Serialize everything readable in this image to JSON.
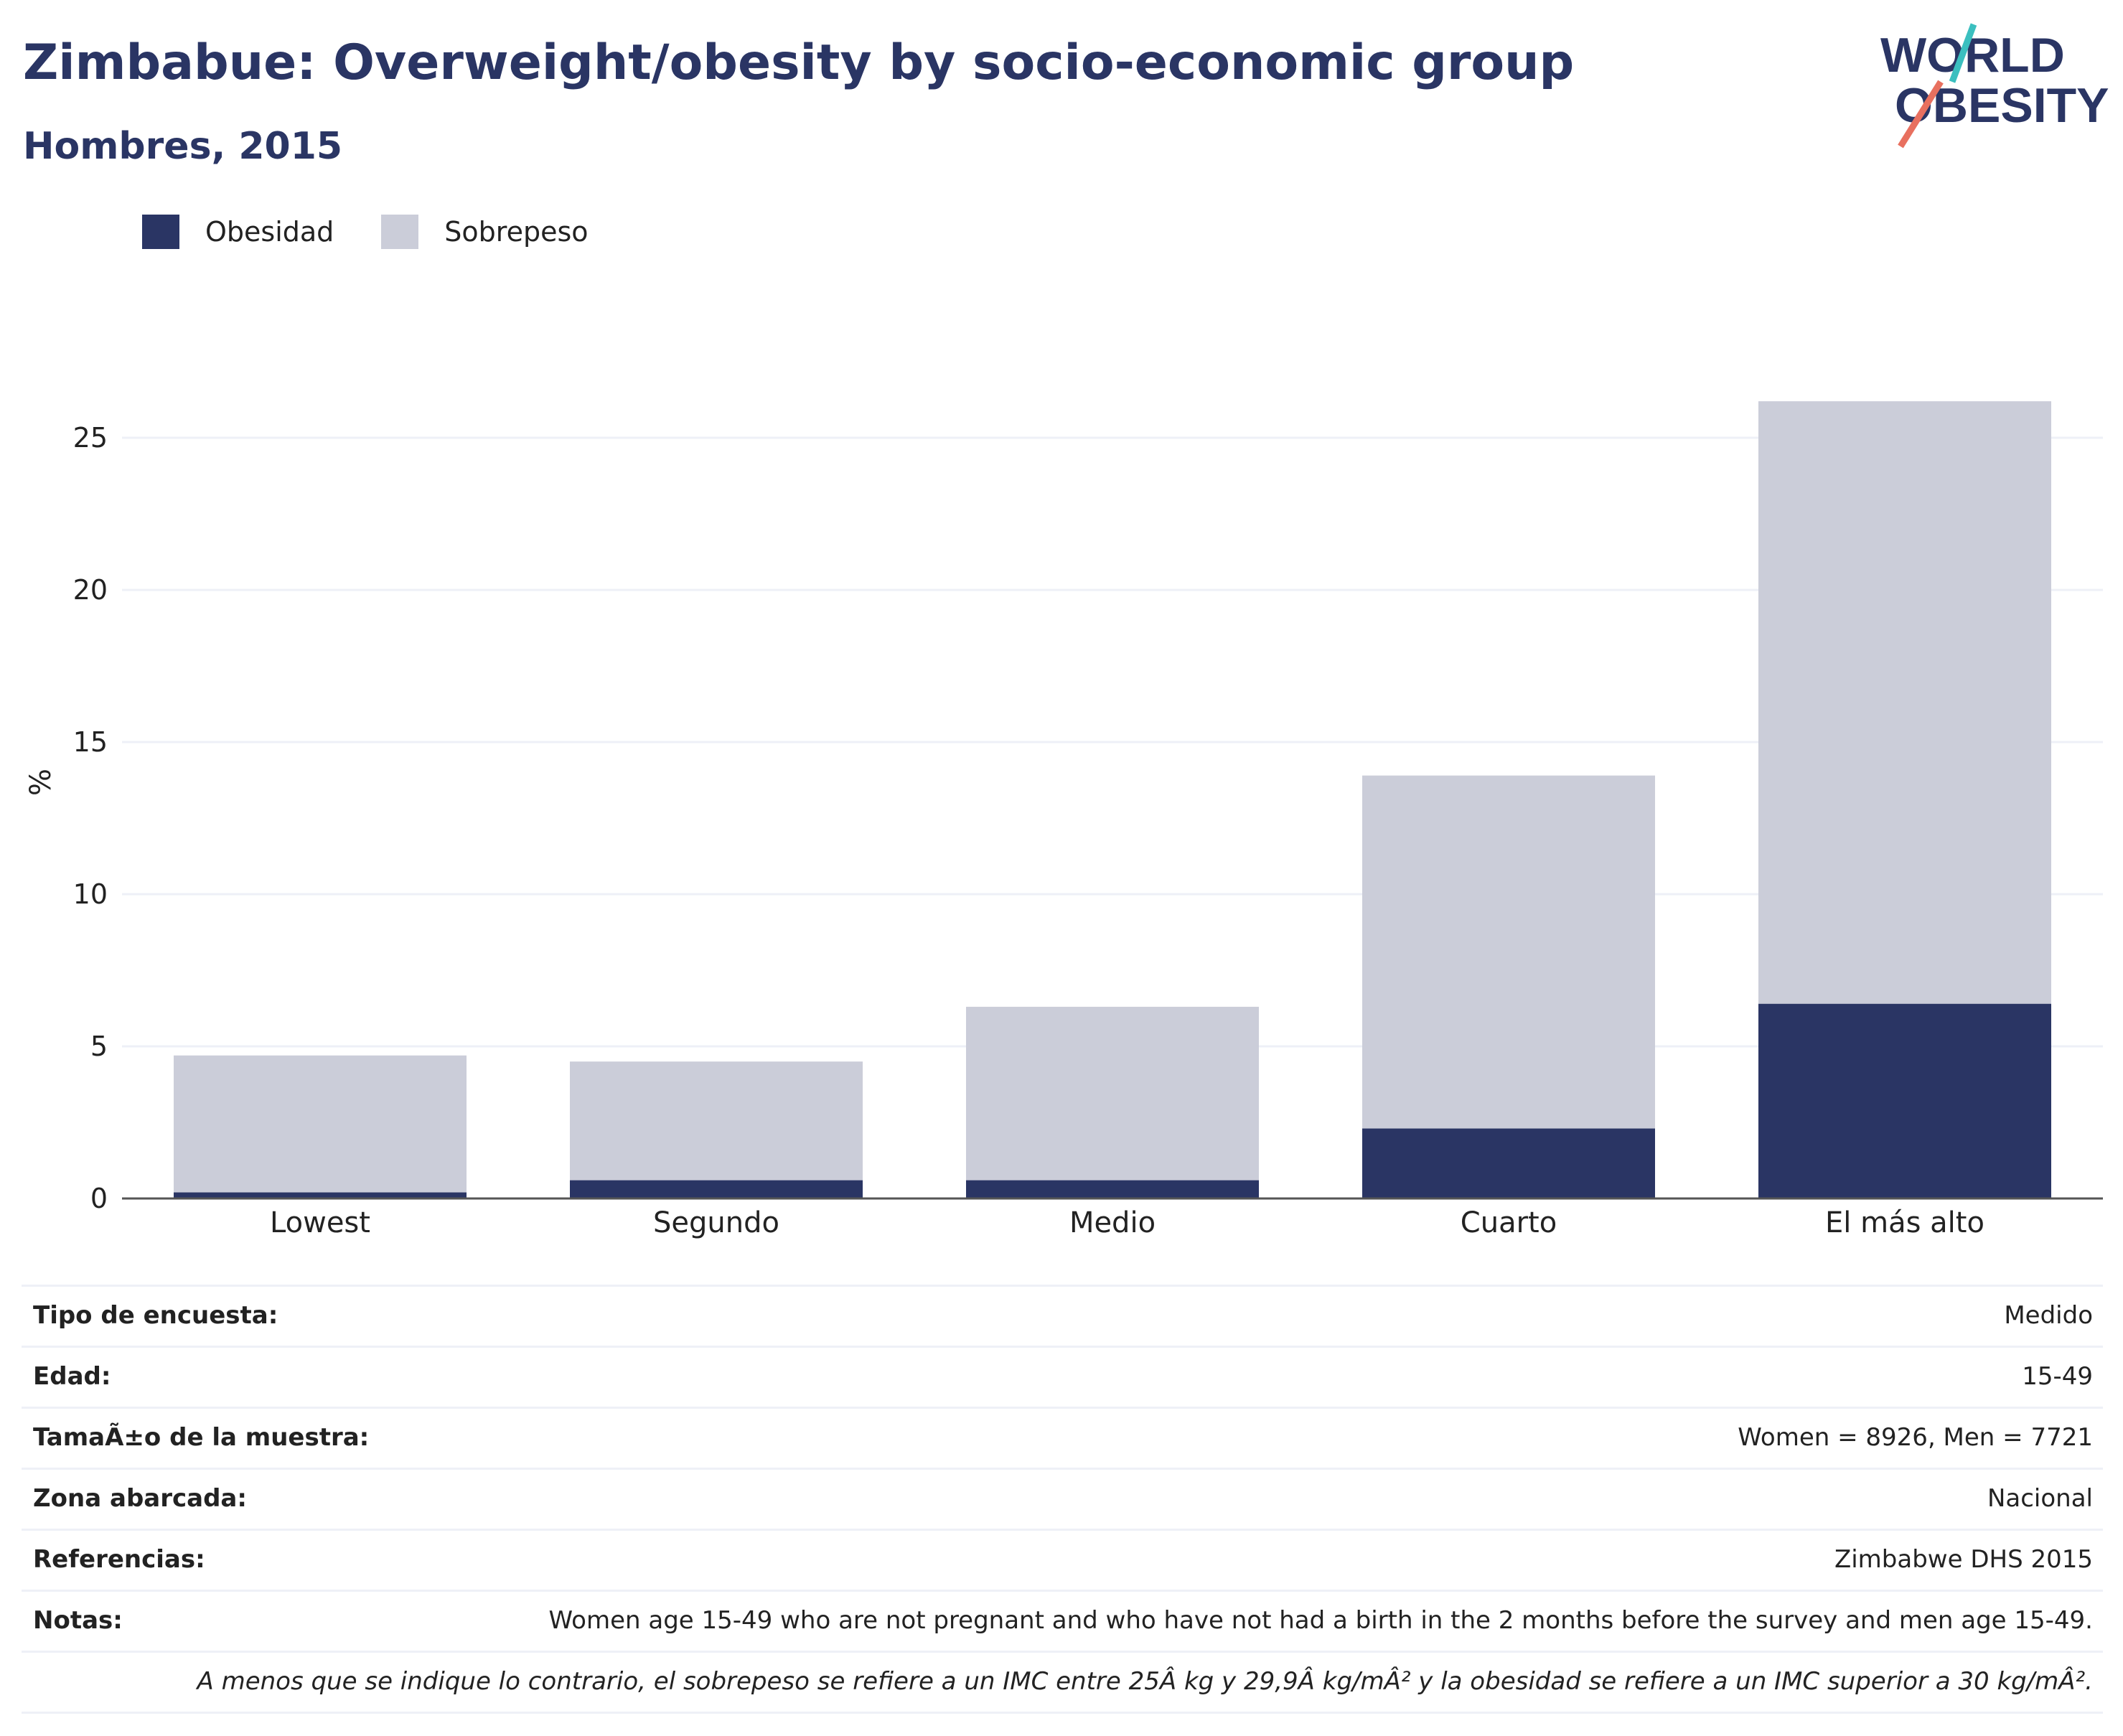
{
  "header": {
    "title": "Zimbabue: Overweight/obesity by socio-economic group",
    "subtitle": "Hombres, 2015"
  },
  "logo": {
    "line1": "WORLD",
    "line2": "OBESITY"
  },
  "colors": {
    "obesity": "#2a3564",
    "overweight": "#cbcdd9",
    "title": "#2a3564",
    "grid": "#eef0f7",
    "axis": "#555555",
    "logo_teal": "#3bbfbf",
    "logo_coral": "#e8705f"
  },
  "chart_data": {
    "type": "bar",
    "stacked": true,
    "categories": [
      "Lowest",
      "Segundo",
      "Medio",
      "Cuarto",
      "El más alto"
    ],
    "series": [
      {
        "name": "Obesidad",
        "values": [
          0.2,
          0.6,
          0.6,
          2.3,
          6.4
        ]
      },
      {
        "name": "Sobrepeso",
        "values": [
          4.5,
          3.9,
          5.7,
          11.6,
          19.8
        ]
      }
    ],
    "ylabel": "%",
    "ylim": [
      0,
      27
    ],
    "yticks": [
      0,
      5,
      10,
      15,
      20,
      25
    ],
    "grid": true,
    "legend": "top-left"
  },
  "info": [
    {
      "key": "Tipo de encuesta:",
      "value": "Medido"
    },
    {
      "key": "Edad:",
      "value": "15-49"
    },
    {
      "key": "TamaÃ±o de la muestra:",
      "value": "Women = 8926, Men = 7721"
    },
    {
      "key": "Zona abarcada:",
      "value": "Nacional"
    },
    {
      "key": "Referencias:",
      "value": "Zimbabwe DHS 2015"
    },
    {
      "key": "Notas:",
      "value": "Women age 15-49 who are not pregnant and who have not had a birth in the 2 months before the survey and men age 15-49."
    },
    {
      "key": "",
      "value": "A menos que se indique lo contrario, el sobrepeso se refiere a un IMC entre 25Â kg y 29,9Â kg/mÂ² y la obesidad se refiere a un IMC superior a 30 kg/mÂ²."
    }
  ]
}
